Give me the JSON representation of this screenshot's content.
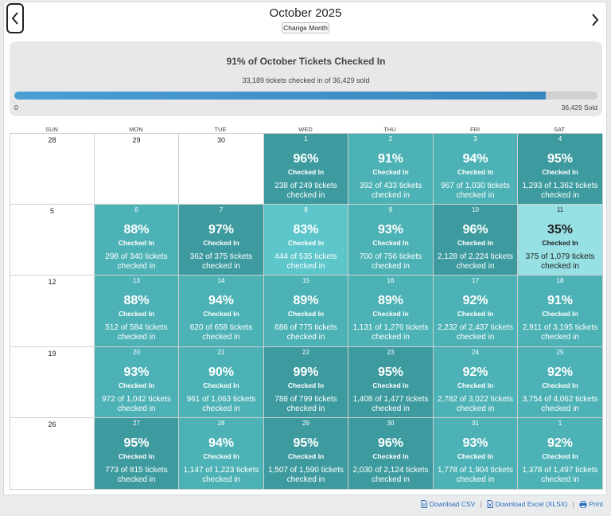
{
  "header": {
    "title": "October 2025",
    "change_month_label": "Change Month"
  },
  "summary": {
    "title": "91% of October Tickets Checked In",
    "subtitle": "33,189 tickets checked in of 36,429 sold",
    "progress_fraction": 0.911,
    "min_label": "0",
    "max_label": "36,429 Sold"
  },
  "calendar": {
    "weekday_labels": [
      "SUN",
      "MON",
      "TUE",
      "WED",
      "THU",
      "FRI",
      "SAT"
    ],
    "checked_in_label": "Checked In",
    "weeks": [
      [
        {
          "day": "28"
        },
        {
          "day": "29"
        },
        {
          "day": "30"
        },
        {
          "day": "1",
          "pct": "96%",
          "count": "238 of 249 tickets checked in"
        },
        {
          "day": "2",
          "pct": "91%",
          "count": "392 of 433 tickets checked in"
        },
        {
          "day": "3",
          "pct": "94%",
          "count": "967 of 1,030 tickets checked in"
        },
        {
          "day": "4",
          "pct": "95%",
          "count": "1,293 of 1,362 tickets checked in"
        }
      ],
      [
        {
          "day": "5"
        },
        {
          "day": "6",
          "pct": "88%",
          "count": "298 of 340 tickets checked in"
        },
        {
          "day": "7",
          "pct": "97%",
          "count": "362 of 375 tickets checked in"
        },
        {
          "day": "8",
          "pct": "83%",
          "count": "444 of 535 tickets checked in"
        },
        {
          "day": "9",
          "pct": "93%",
          "count": "700 of 756 tickets checked in"
        },
        {
          "day": "10",
          "pct": "96%",
          "count": "2,128 of 2,224 tickets checked in"
        },
        {
          "day": "11",
          "pct": "35%",
          "count": "375 of 1,079 tickets checked in"
        }
      ],
      [
        {
          "day": "12"
        },
        {
          "day": "13",
          "pct": "88%",
          "count": "512 of 584 tickets checked in"
        },
        {
          "day": "14",
          "pct": "94%",
          "count": "620 of 658 tickets checked in"
        },
        {
          "day": "15",
          "pct": "89%",
          "count": "686 of 775 tickets checked in"
        },
        {
          "day": "16",
          "pct": "89%",
          "count": "1,131 of 1,276 tickets checked in"
        },
        {
          "day": "17",
          "pct": "92%",
          "count": "2,232 of 2,437 tickets checked in"
        },
        {
          "day": "18",
          "pct": "91%",
          "count": "2,911 of 3,195 tickets checked in"
        }
      ],
      [
        {
          "day": "19"
        },
        {
          "day": "20",
          "pct": "93%",
          "count": "972 of 1,042 tickets checked in"
        },
        {
          "day": "21",
          "pct": "90%",
          "count": "961 of 1,063 tickets checked in"
        },
        {
          "day": "22",
          "pct": "99%",
          "count": "788 of 799 tickets checked in"
        },
        {
          "day": "23",
          "pct": "95%",
          "count": "1,408 of 1,477 tickets checked in"
        },
        {
          "day": "24",
          "pct": "92%",
          "count": "2,782 of 3,022 tickets checked in"
        },
        {
          "day": "25",
          "pct": "92%",
          "count": "3,754 of 4,062 tickets checked in"
        }
      ],
      [
        {
          "day": "26"
        },
        {
          "day": "27",
          "pct": "95%",
          "count": "773 of 815 tickets checked in"
        },
        {
          "day": "28",
          "pct": "94%",
          "count": "1,147 of 1,223 tickets checked in"
        },
        {
          "day": "29",
          "pct": "95%",
          "count": "1,507 of 1,590 tickets checked in"
        },
        {
          "day": "30",
          "pct": "96%",
          "count": "2,030 of 2,124 tickets checked in"
        },
        {
          "day": "31",
          "pct": "93%",
          "count": "1,778 of 1,904 tickets checked in"
        },
        {
          "day": "1",
          "pct": "92%",
          "count": "1,378 of 1,497 tickets checked in"
        }
      ]
    ]
  },
  "colors": {
    "teal_dark": "#3d9b9f",
    "teal_mid": "#4db2b5",
    "teal_light": "#5cc6cb",
    "teal_pale": "#97e0e4",
    "progress_fill": "#4a9fd5",
    "link": "#2a6ebb"
  },
  "footer": {
    "download_csv": "Download CSV",
    "download_excel": "Download Excel (XLSX)",
    "print": "Print",
    "separator": "|"
  }
}
